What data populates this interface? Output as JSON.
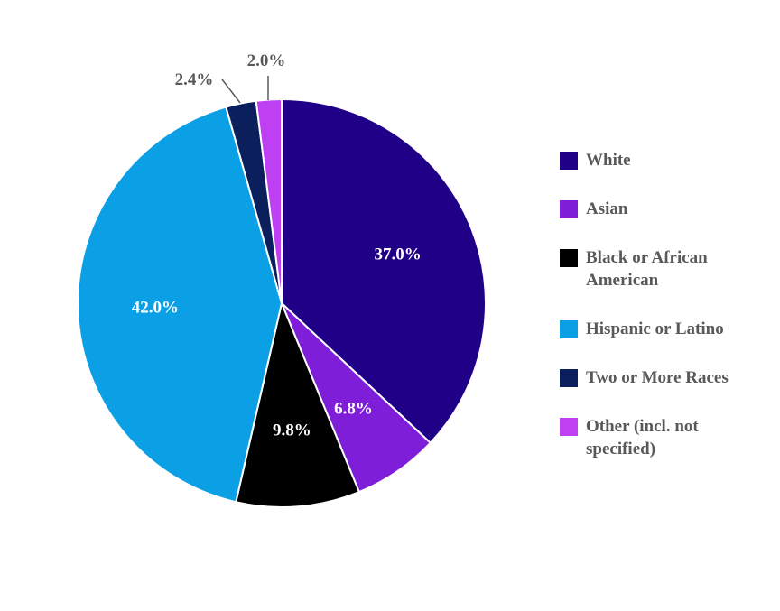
{
  "chart_data": {
    "type": "pie",
    "slices": [
      {
        "name": "White",
        "value": 37.0,
        "label": "37.0%",
        "color": "#1f0087",
        "label_color": "#ffffff",
        "label_position": "inside"
      },
      {
        "name": "Asian",
        "value": 6.8,
        "label": "6.8%",
        "color": "#7e1ed9",
        "label_color": "#ffffff",
        "label_position": "inside"
      },
      {
        "name": "Black or African American",
        "value": 9.8,
        "label": "9.8%",
        "color": "#000000",
        "label_color": "#ffffff",
        "label_position": "inside"
      },
      {
        "name": "Hispanic or Latino",
        "value": 42.0,
        "label": "42.0%",
        "color": "#0b9fe6",
        "label_color": "#ffffff",
        "label_position": "inside"
      },
      {
        "name": "Two or More Races",
        "value": 2.4,
        "label": "2.4%",
        "color": "#0a1f5c",
        "label_color": "#595959",
        "label_position": "outside"
      },
      {
        "name": "Other (incl. not specified)",
        "value": 2.0,
        "label": "2.0%",
        "color": "#bf40f2",
        "label_color": "#595959",
        "label_position": "outside"
      }
    ],
    "start_angle": "12 o'clock",
    "direction": "clockwise",
    "legend_position": "right"
  }
}
